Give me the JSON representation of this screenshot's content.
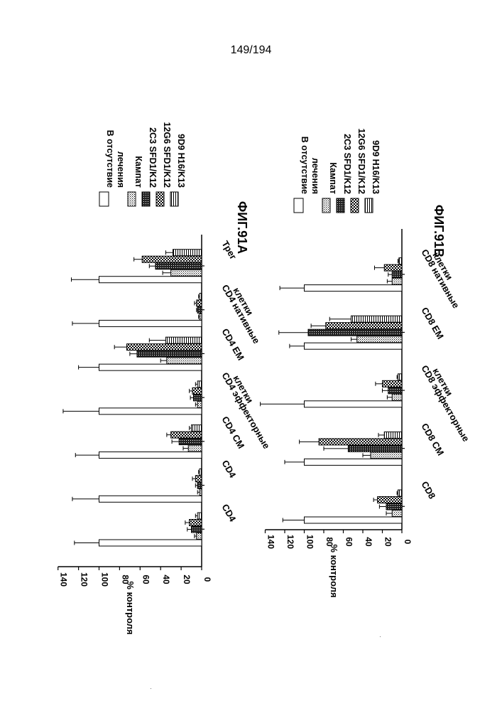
{
  "page": {
    "number": "149/194"
  },
  "legend": {
    "entries": [
      {
        "key": "none",
        "lines": [
          "В отсутствие",
          "лечения"
        ],
        "pattern": "white"
      },
      {
        "key": "campath",
        "lines": [
          "Кампат"
        ],
        "pattern": "dots"
      },
      {
        "key": "2c3",
        "lines": [
          "2C3 SFD1/K12"
        ],
        "pattern": "dense"
      },
      {
        "key": "12g6",
        "lines": [
          "12G6 SFD1/K12"
        ],
        "pattern": "checker"
      },
      {
        "key": "9d9",
        "lines": [
          "9D9 H16/K13"
        ],
        "pattern": "stripes"
      }
    ]
  },
  "chart_data": [
    {
      "type": "bar",
      "title": "ФИГ.91А",
      "ylabel": "% контроля",
      "ylim": [
        0,
        140
      ],
      "yticks": [
        0,
        20,
        40,
        60,
        80,
        100,
        120,
        140
      ],
      "categories": [
        {
          "lines": [
            "CD4"
          ]
        },
        {
          "lines": [
            "CD4"
          ]
        },
        {
          "lines": [
            "CD4 CM"
          ]
        },
        {
          "lines": [
            "CD4 эффекторные",
            "клетки"
          ]
        },
        {
          "lines": [
            "CD4 EM"
          ]
        },
        {
          "lines": [
            "CD4 нативные",
            "клетки"
          ]
        },
        {
          "lines": [
            "Трег"
          ]
        }
      ],
      "series": [
        {
          "name": "В отсутствие лечения",
          "values": [
            100,
            100,
            100,
            100,
            100,
            100,
            100
          ],
          "errors": [
            24,
            26,
            23,
            35,
            20,
            26,
            27
          ]
        },
        {
          "name": "Кампат",
          "values": [
            5,
            2,
            13,
            4,
            34,
            2,
            30
          ],
          "errors": [
            2,
            2,
            5,
            2,
            6,
            1,
            8
          ]
        },
        {
          "name": "2C3 SFD1/K12",
          "values": [
            10,
            4,
            22,
            8,
            63,
            4,
            45
          ],
          "errors": [
            4,
            2,
            7,
            3,
            7,
            1,
            6
          ]
        },
        {
          "name": "12G6 SFD1/K12",
          "values": [
            12,
            6,
            30,
            9,
            73,
            5,
            58
          ],
          "errors": [
            4,
            3,
            4,
            3,
            12,
            2,
            8
          ]
        },
        {
          "name": "9D9 H16/K13",
          "values": [
            4,
            2,
            10,
            4,
            35,
            2,
            28
          ],
          "errors": [
            2,
            1,
            2,
            2,
            16,
            1,
            7
          ]
        }
      ]
    },
    {
      "type": "bar",
      "title": "ФИГ.91В",
      "ylabel": "% контроля",
      "ylim": [
        0,
        140
      ],
      "yticks": [
        0,
        20,
        40,
        60,
        80,
        100,
        120,
        140
      ],
      "categories": [
        {
          "lines": [
            "CD8"
          ]
        },
        {
          "lines": [
            "CD8 CM"
          ]
        },
        {
          "lines": [
            "CD8 эффекторные",
            "клетки"
          ]
        },
        {
          "lines": [
            "CD8 EM"
          ]
        },
        {
          "lines": [
            "CD8 нативные",
            "клетки"
          ]
        }
      ],
      "series": [
        {
          "name": "В отсутствие лечения",
          "values": [
            100,
            100,
            100,
            100,
            100
          ],
          "errors": [
            22,
            20,
            45,
            15,
            25
          ]
        },
        {
          "name": "Кампат",
          "values": [
            10,
            32,
            10,
            46,
            10
          ],
          "errors": [
            6,
            8,
            5,
            6,
            5
          ]
        },
        {
          "name": "2C3 SFD1/K12",
          "values": [
            16,
            55,
            14,
            96,
            10
          ],
          "errors": [
            7,
            25,
            6,
            30,
            4
          ]
        },
        {
          "name": "12G6 SFD1/K12",
          "values": [
            25,
            85,
            20,
            78,
            18
          ],
          "errors": [
            4,
            20,
            7,
            15,
            10
          ]
        },
        {
          "name": "9D9 H16/K13",
          "values": [
            4,
            18,
            4,
            52,
            3
          ],
          "errors": [
            1,
            6,
            1,
            22,
            1
          ]
        }
      ]
    }
  ]
}
